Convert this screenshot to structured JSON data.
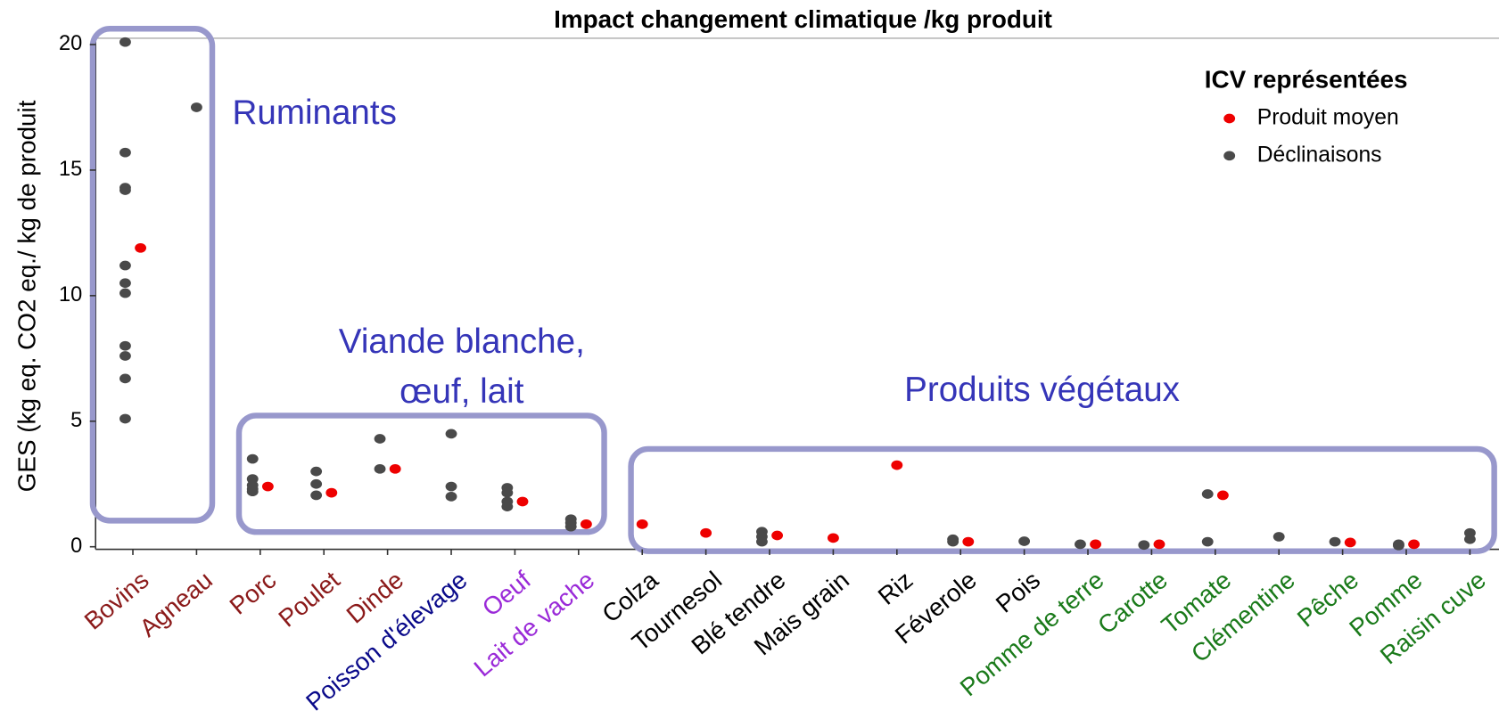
{
  "chart_data": {
    "type": "scatter",
    "title": "Impact changement climatique /kg produit",
    "ylabel": "GES (kg eq. CO2 eq./ kg de produit",
    "legend_title": "ICV représentées",
    "categories": [
      "Bovins",
      "Agneau",
      "Porc",
      "Poulet",
      "Dinde",
      "Poisson d'élevage",
      "Oeuf",
      "Lait de vache",
      "Colza",
      "Tournesol",
      "Blé tendre",
      "Mais grain",
      "Riz",
      "Féverole",
      "Pois",
      "Pomme de terre",
      "Carotte",
      "Tomate",
      "Clémentine",
      "Pêche",
      "Pomme",
      "Raisin cuve"
    ],
    "category_colors": [
      "#8b1a1a",
      "#8b1a1a",
      "#8b1a1a",
      "#8b1a1a",
      "#8b1a1a",
      "#0a0a8a",
      "#9a2ad8",
      "#9a2ad8",
      "#000000",
      "#000000",
      "#000000",
      "#000000",
      "#000000",
      "#000000",
      "#000000",
      "#1a7a1a",
      "#1a7a1a",
      "#1a7a1a",
      "#1a7a1a",
      "#1a7a1a",
      "#1a7a1a",
      "#1a7a1a"
    ],
    "series": [
      {
        "name": "Produit moyen",
        "color": "#ee0000",
        "values": [
          11.9,
          null,
          2.4,
          2.15,
          3.1,
          null,
          1.8,
          0.9,
          0.9,
          0.55,
          0.45,
          0.35,
          3.25,
          0.2,
          null,
          0.1,
          0.1,
          2.05,
          null,
          0.17,
          0.1,
          null
        ]
      },
      {
        "name": "Déclinaisons",
        "color": "#4a4a4a",
        "values": [
          [
            20.1,
            15.7,
            14.3,
            14.2,
            11.2,
            10.5,
            10.1,
            8.0,
            7.6,
            6.7,
            5.1
          ],
          [
            17.5
          ],
          [
            3.5,
            2.7,
            2.45,
            2.3,
            2.2
          ],
          [
            3.0,
            2.5,
            2.05
          ],
          [
            4.3,
            3.1
          ],
          [
            4.5,
            2.4,
            2.0
          ],
          [
            2.35,
            2.15,
            1.8,
            1.6
          ],
          [
            1.1,
            0.95,
            0.8
          ],
          [],
          [],
          [
            0.6,
            0.4,
            0.2
          ],
          [],
          [],
          [
            0.3,
            0.2
          ],
          [
            0.22
          ],
          [
            0.1
          ],
          [
            0.07
          ],
          [
            2.1,
            0.2
          ],
          [
            0.4
          ],
          [
            0.2
          ],
          [
            0.1,
            0.05
          ],
          [
            0.55,
            0.3
          ]
        ]
      }
    ],
    "ylim": [
      -0.1,
      20.25
    ],
    "yticks": [
      0,
      5,
      10,
      15,
      20
    ],
    "annotations": [
      "Ruminants",
      "Viande blanche,",
      "œuf, lait",
      "Produits végétaux"
    ]
  }
}
